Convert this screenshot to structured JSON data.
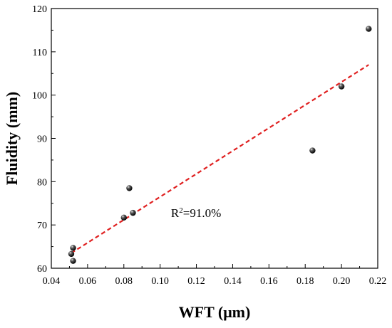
{
  "chart_data": {
    "type": "scatter",
    "title": "",
    "xlabel": "WFT (μm)",
    "ylabel": "Fluidity (mm)",
    "xlim": [
      0.04,
      0.22
    ],
    "ylim": [
      60,
      120
    ],
    "x_ticks": [
      "0.04",
      "0.06",
      "0.08",
      "0.10",
      "0.12",
      "0.14",
      "0.16",
      "0.18",
      "0.20",
      "0.22"
    ],
    "y_ticks": [
      "60",
      "70",
      "80",
      "90",
      "100",
      "110",
      "120"
    ],
    "grid": false,
    "points": [
      {
        "x": 0.051,
        "y": 63.3
      },
      {
        "x": 0.052,
        "y": 64.7
      },
      {
        "x": 0.052,
        "y": 61.7
      },
      {
        "x": 0.08,
        "y": 71.7
      },
      {
        "x": 0.083,
        "y": 78.5
      },
      {
        "x": 0.085,
        "y": 72.8
      },
      {
        "x": 0.184,
        "y": 87.2
      },
      {
        "x": 0.2,
        "y": 102.0
      },
      {
        "x": 0.215,
        "y": 115.3
      }
    ],
    "fit_line": {
      "x": [
        0.051,
        0.215
      ],
      "y": [
        63.5,
        107.0
      ],
      "color": "#e02020",
      "style": "dashed"
    },
    "annotation": {
      "text_main": "R",
      "text_sup": "2",
      "text_rest": "=91.0%",
      "x": 0.106,
      "y": 71.8
    },
    "marker_color": "#000000"
  }
}
